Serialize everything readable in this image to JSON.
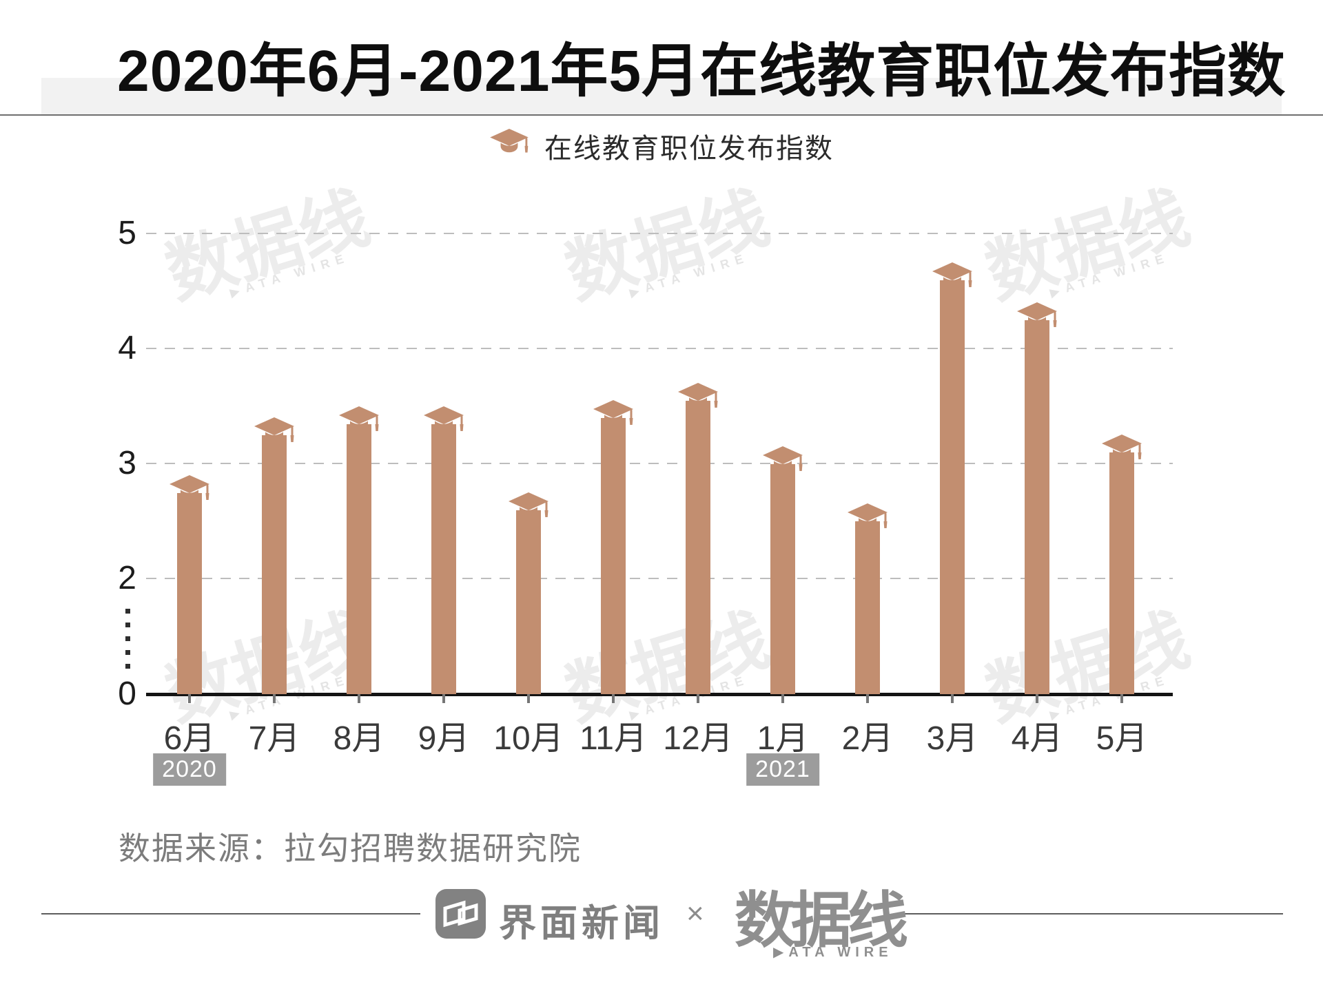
{
  "header": {
    "title": "2020年6月-2021年5月在线教育职位发布指数"
  },
  "legend": {
    "icon": "graduation-cap-icon",
    "label": "在线教育职位发布指数"
  },
  "chart_data": {
    "type": "bar",
    "title": "2020年6月-2021年5月在线教育职位发布指数",
    "series_name": "在线教育职位发布指数",
    "categories": [
      "6月",
      "7月",
      "8月",
      "9月",
      "10月",
      "11月",
      "12月",
      "1月",
      "2月",
      "3月",
      "4月",
      "5月"
    ],
    "values": [
      2.9,
      3.4,
      3.5,
      3.5,
      2.75,
      3.55,
      3.7,
      3.15,
      2.65,
      4.75,
      4.4,
      3.25
    ],
    "y_ticks": [
      0,
      2,
      3,
      4,
      5
    ],
    "ylim": [
      0,
      5.2
    ],
    "y_axis_break": {
      "between": [
        0,
        2
      ]
    },
    "grid": "dashed-horizontal",
    "legend_position": "top-center",
    "bar_color": "#c28e70",
    "year_groups": [
      {
        "label": "2020",
        "at_category": "6月"
      },
      {
        "label": "2021",
        "at_category": "1月"
      }
    ]
  },
  "source": {
    "text": "数据来源：拉勾招聘数据研究院"
  },
  "footer": {
    "jiemian_label": "界面新闻",
    "separator": "×",
    "datawire_logo_text": "数据线",
    "datawire_sub": "DATA WIRE"
  },
  "watermark": {
    "text": "数据线",
    "subtext": "DATA WIRE"
  }
}
